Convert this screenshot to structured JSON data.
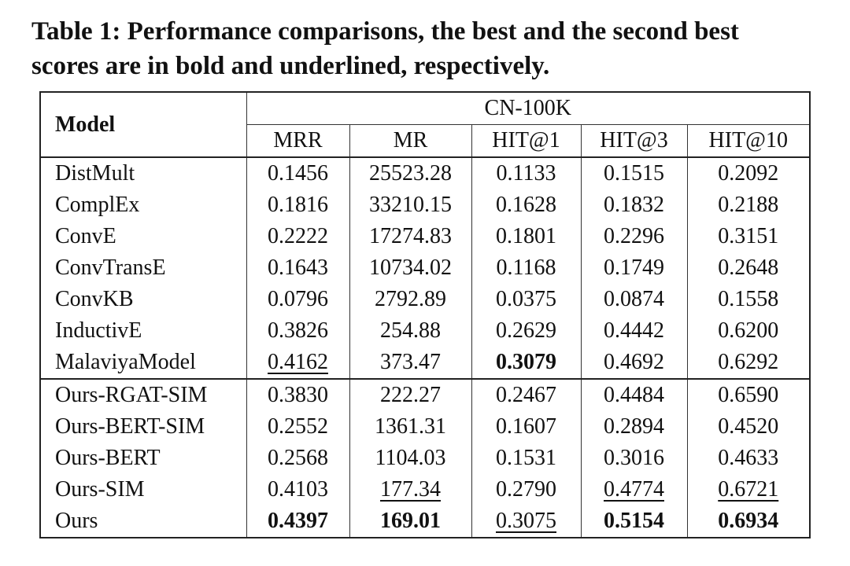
{
  "caption": {
    "label": "Table 1:",
    "text": "Performance comparisons, the best and the second best scores are in bold and underlined, respectively."
  },
  "table": {
    "model_header": "Model",
    "group_header": "CN-100K",
    "columns": [
      "MRR",
      "MR",
      "HIT@1",
      "HIT@3",
      "HIT@10"
    ],
    "groups": [
      {
        "rows": [
          [
            "DistMult",
            "0.1456",
            "25523.28",
            "0.1133",
            "0.1515",
            "0.2092"
          ],
          [
            "ComplEx",
            "0.1816",
            "33210.15",
            "0.1628",
            "0.1832",
            "0.2188"
          ],
          [
            "ConvE",
            "0.2222",
            "17274.83",
            "0.1801",
            "0.2296",
            "0.3151"
          ],
          [
            "ConvTransE",
            "0.1643",
            "10734.02",
            "0.1168",
            "0.1749",
            "0.2648"
          ],
          [
            "ConvKB",
            "0.0796",
            "2792.89",
            "0.0375",
            "0.0874",
            "0.1558"
          ],
          [
            "InductivE",
            "0.3826",
            "254.88",
            "0.2629",
            "0.4442",
            "0.6200"
          ],
          [
            "MalaviyaModel",
            {
              "text": "0.4162",
              "style": "underline"
            },
            "373.47",
            {
              "text": "0.3079",
              "style": "bold"
            },
            "0.4692",
            "0.6292"
          ]
        ]
      },
      {
        "rows": [
          [
            "Ours-RGAT-SIM",
            "0.3830",
            "222.27",
            "0.2467",
            "0.4484",
            "0.6590"
          ],
          [
            "Ours-BERT-SIM",
            "0.2552",
            "1361.31",
            "0.1607",
            "0.2894",
            "0.4520"
          ],
          [
            "Ours-BERT",
            "0.2568",
            "1104.03",
            "0.1531",
            "0.3016",
            "0.4633"
          ],
          [
            "Ours-SIM",
            "0.4103",
            {
              "text": "177.34",
              "style": "underline"
            },
            "0.2790",
            {
              "text": "0.4774",
              "style": "underline"
            },
            {
              "text": "0.6721",
              "style": "underline"
            }
          ],
          [
            "Ours",
            {
              "text": "0.4397",
              "style": "bold"
            },
            {
              "text": "169.01",
              "style": "bold"
            },
            {
              "text": "0.3075",
              "style": "underline"
            },
            {
              "text": "0.5154",
              "style": "bold"
            },
            {
              "text": "0.6934",
              "style": "bold"
            }
          ]
        ]
      }
    ]
  }
}
